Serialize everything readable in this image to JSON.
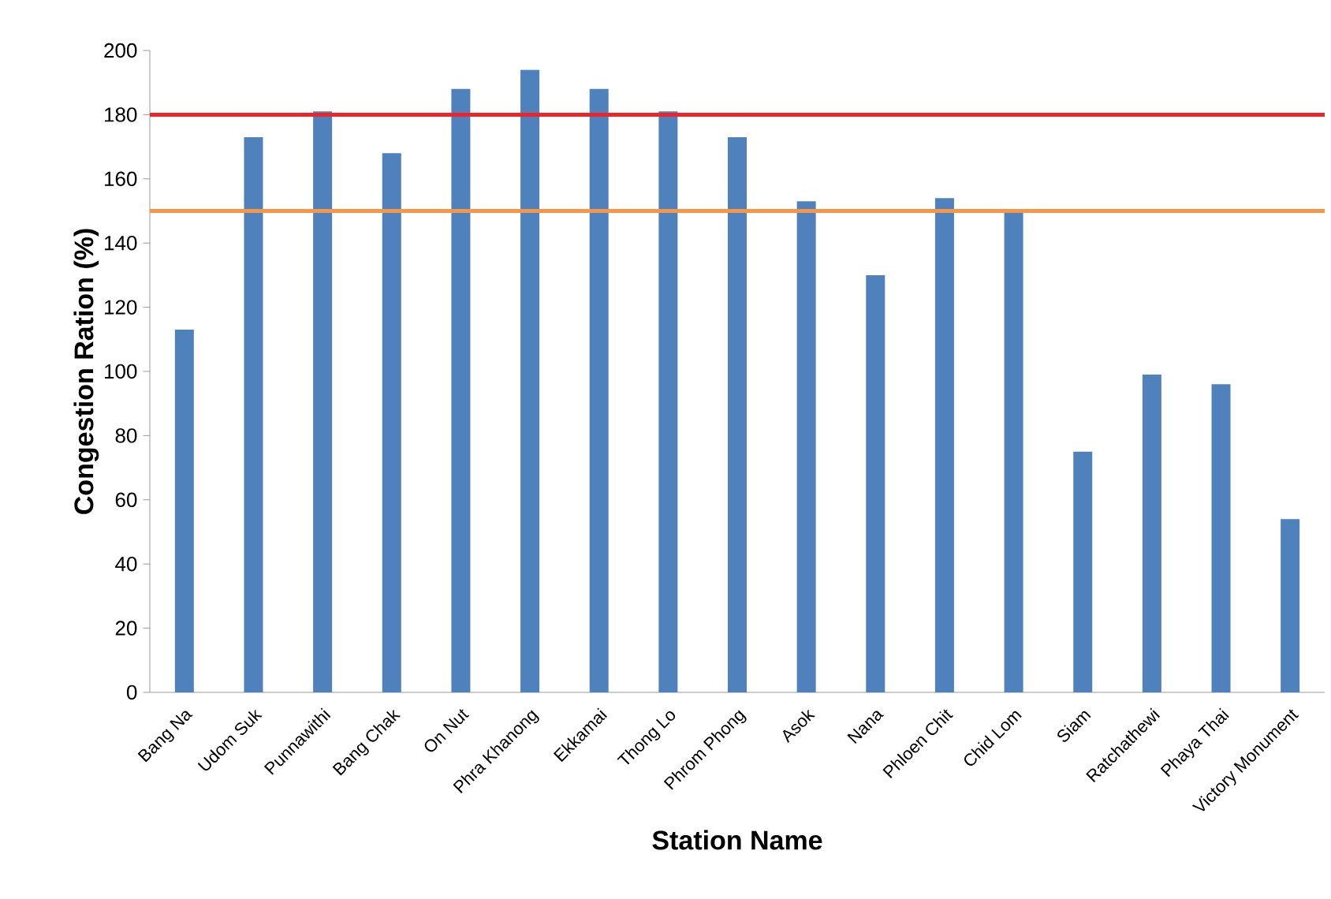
{
  "chart_data": {
    "type": "bar",
    "xlabel": "Station Name",
    "ylabel": "Congestion Ration (%)",
    "categories": [
      "Bang Na",
      "Udom Suk",
      "Punnawithi",
      "Bang Chak",
      "On Nut",
      "Phra Khanong",
      "Ekkamai",
      "Thong Lo",
      "Phrom Phong",
      "Asok",
      "Nana",
      "Phloen Chit",
      "Chid Lom",
      "Siam",
      "Ratchathewi",
      "Phaya Thai",
      "Victory Monument"
    ],
    "values": [
      113,
      173,
      181,
      168,
      188,
      194,
      188,
      181,
      173,
      153,
      130,
      154,
      150,
      75,
      99,
      96,
      54
    ],
    "color": "#4f81bd",
    "ylim": [
      0,
      200
    ],
    "yticks": [
      0,
      20,
      40,
      60,
      80,
      100,
      120,
      140,
      160,
      180,
      200
    ],
    "ref_lines": [
      {
        "axis": "y",
        "value": 180,
        "color": "#e8262b"
      },
      {
        "axis": "y",
        "value": 150,
        "color": "#f79646"
      }
    ],
    "grid": false
  }
}
